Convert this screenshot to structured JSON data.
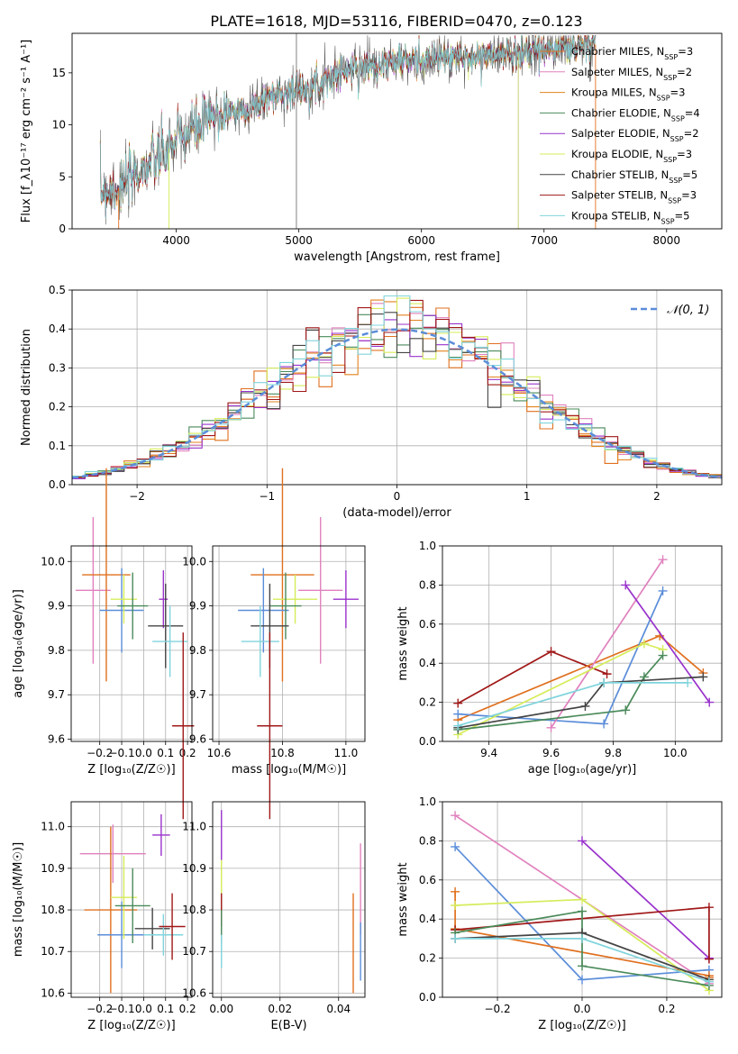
{
  "chart_data": [
    {
      "id": "spectrum",
      "type": "line",
      "title": "PLATE=1618, MJD=53116, FIBERID=0470, z=0.123",
      "xlabel": "wavelength [Angstrom, rest frame]",
      "ylabel": "Flux [f_λ10⁻¹⁷ erg cm⁻² s⁻¹ A⁻¹]",
      "xlim": [
        3150,
        8450
      ],
      "ylim": [
        0,
        18.8
      ],
      "xticks": [
        4000,
        5000,
        6000,
        7000,
        8000
      ],
      "yticks": [
        0,
        5,
        10,
        15
      ],
      "grid": false,
      "legend_position": "top-right",
      "series": [
        {
          "name": "Chabrier MILES, N_SSP=3",
          "color": "#e0701f"
        },
        {
          "name": "Salpeter MILES, N_SSP=2",
          "color": "#e081bd"
        },
        {
          "name": "Kroupa MILES, N_SSP=3",
          "color": "#e3821f"
        },
        {
          "name": "Chabrier ELODIE, N_SSP=4",
          "color": "#4a8a5a"
        },
        {
          "name": "Salpeter ELODIE, N_SSP=2",
          "color": "#9932cc"
        },
        {
          "name": "Kroupa ELODIE, N_SSP=3",
          "color": "#d6ec5a"
        },
        {
          "name": "Chabrier STELIB, N_SSP=5",
          "color": "#444444"
        },
        {
          "name": "Salpeter STELIB, N_SSP=3",
          "color": "#a01818"
        },
        {
          "name": "Kroupa STELIB, N_SSP=5",
          "color": "#80d4dc"
        }
      ],
      "continuum_points": [
        [
          3380,
          3.6
        ],
        [
          3550,
          4.0
        ],
        [
          3750,
          6.0
        ],
        [
          3900,
          7.2
        ],
        [
          4000,
          8.5
        ],
        [
          4200,
          10.0
        ],
        [
          4400,
          11.3
        ],
        [
          4600,
          11.6
        ],
        [
          4800,
          12.9
        ],
        [
          5000,
          13.4
        ],
        [
          5150,
          13.9
        ],
        [
          5300,
          14.8
        ],
        [
          5500,
          15.6
        ],
        [
          5800,
          16.1
        ],
        [
          6100,
          16.4
        ],
        [
          6400,
          16.5
        ],
        [
          6700,
          16.8
        ],
        [
          7000,
          17.3
        ],
        [
          7200,
          17.4
        ],
        [
          7420,
          17.7
        ]
      ]
    },
    {
      "id": "residuals",
      "type": "line",
      "xlabel": "(data-model)/error",
      "ylabel": "Normed distribution",
      "xlim": [
        -2.5,
        2.5
      ],
      "ylim": [
        0,
        0.5
      ],
      "xticks": [
        -2,
        -1,
        0,
        1,
        2
      ],
      "yticks": [
        0.0,
        0.1,
        0.2,
        0.3,
        0.4,
        0.5
      ],
      "grid": true,
      "legend": "𝒩(0, 1)",
      "legend_position": "top-right",
      "normal_color": "#5b8dd9"
    },
    {
      "id": "age-vs-Z",
      "type": "scatter",
      "xlabel": "Z [log₁₀(Z/Z☉)]",
      "ylabel": "age  [log₁₀(age/yr)]",
      "xlim": [
        -0.33,
        0.22
      ],
      "ylim": [
        9.595,
        10.035
      ],
      "xticks": [
        -0.2,
        -0.1,
        0.0,
        0.1,
        0.2
      ],
      "yticks": [
        9.6,
        9.7,
        9.8,
        9.9,
        10.0
      ],
      "grid": true,
      "points": [
        {
          "color": "#e081bd",
          "x": -0.23,
          "xerr": 0.08,
          "y": 9.935,
          "yerr": 0.165
        },
        {
          "color": "#e0701f",
          "x": -0.17,
          "xerr": 0.11,
          "y": 9.97,
          "yerr": 0.24
        },
        {
          "color": "#5b8dd9",
          "x": -0.1,
          "xerr": 0.1,
          "y": 9.89,
          "yerr": 0.095
        },
        {
          "color": "#d6ec5a",
          "x": -0.09,
          "xerr": 0.06,
          "y": 9.915,
          "yerr": 0.055
        },
        {
          "color": "#4a8a5a",
          "x": -0.05,
          "xerr": 0.07,
          "y": 9.9,
          "yerr": 0.075
        },
        {
          "color": "#9932cc",
          "x": 0.09,
          "xerr": 0.02,
          "y": 9.915,
          "yerr": 0.065
        },
        {
          "color": "#444444",
          "x": 0.1,
          "xerr": 0.08,
          "y": 9.855,
          "yerr": 0.095
        },
        {
          "color": "#80d4dc",
          "x": 0.12,
          "xerr": 0.08,
          "y": 9.82,
          "yerr": 0.08
        },
        {
          "color": "#a01818",
          "x": 0.18,
          "xerr": 0.05,
          "y": 9.63,
          "yerr": 0.21
        }
      ]
    },
    {
      "id": "age-vs-mass",
      "type": "scatter",
      "xlabel": "mass [log₁₀(M/M☉)]",
      "ylabel": "",
      "xlim": [
        10.58,
        11.06
      ],
      "ylim": [
        9.595,
        10.035
      ],
      "xticks": [
        10.6,
        10.8,
        11.0
      ],
      "yticks": [
        9.6,
        9.7,
        9.8,
        9.9,
        10.0
      ],
      "grid": true,
      "points": [
        {
          "color": "#e0701f",
          "x": 10.8,
          "xerr": 0.1,
          "y": 9.97,
          "yerr": 0.24
        },
        {
          "color": "#e081bd",
          "x": 10.92,
          "xerr": 0.07,
          "y": 9.935,
          "yerr": 0.165
        },
        {
          "color": "#9932cc",
          "x": 11.0,
          "xerr": 0.04,
          "y": 9.915,
          "yerr": 0.065
        },
        {
          "color": "#d6ec5a",
          "x": 10.84,
          "xerr": 0.07,
          "y": 9.915,
          "yerr": 0.055
        },
        {
          "color": "#5b8dd9",
          "x": 10.74,
          "xerr": 0.08,
          "y": 9.89,
          "yerr": 0.095
        },
        {
          "color": "#4a8a5a",
          "x": 10.81,
          "xerr": 0.05,
          "y": 9.9,
          "yerr": 0.075
        },
        {
          "color": "#444444",
          "x": 10.76,
          "xerr": 0.06,
          "y": 9.855,
          "yerr": 0.095
        },
        {
          "color": "#80d4dc",
          "x": 10.73,
          "xerr": 0.06,
          "y": 9.82,
          "yerr": 0.08
        },
        {
          "color": "#a01818",
          "x": 10.76,
          "xerr": 0.04,
          "y": 9.63,
          "yerr": 0.21
        }
      ]
    },
    {
      "id": "weight-vs-age",
      "type": "line",
      "xlabel": "age  [log₁₀(age/yr)]",
      "ylabel": "mass weight",
      "xlim": [
        9.25,
        10.15
      ],
      "ylim": [
        0,
        1
      ],
      "xticks": [
        9.4,
        9.6,
        9.8,
        10.0
      ],
      "yticks": [
        0.0,
        0.2,
        0.4,
        0.6,
        0.8,
        1.0
      ],
      "grid": true,
      "series": [
        {
          "color": "#a01818",
          "x": [
            9.3,
            9.6,
            9.78
          ],
          "y": [
            0.195,
            0.46,
            0.345
          ]
        },
        {
          "color": "#e0701f",
          "x": [
            9.3,
            9.95,
            10.09
          ],
          "y": [
            0.11,
            0.54,
            0.35
          ]
        },
        {
          "color": "#5b8dd9",
          "x": [
            9.3,
            9.77,
            9.96
          ],
          "y": [
            0.14,
            0.09,
            0.77
          ]
        },
        {
          "color": "#e081bd",
          "x": [
            9.6,
            9.96
          ],
          "y": [
            0.07,
            0.93
          ]
        },
        {
          "color": "#9932cc",
          "x": [
            9.84,
            10.11
          ],
          "y": [
            0.8,
            0.2
          ]
        },
        {
          "color": "#d6ec5a",
          "x": [
            9.3,
            9.9,
            9.96
          ],
          "y": [
            0.035,
            0.5,
            0.47
          ]
        },
        {
          "color": "#4a8a5a",
          "x": [
            9.3,
            9.84,
            9.9,
            9.96
          ],
          "y": [
            0.06,
            0.16,
            0.33,
            0.44
          ]
        },
        {
          "color": "#444444",
          "x": [
            9.3,
            9.71,
            9.77,
            10.09
          ],
          "y": [
            0.07,
            0.18,
            0.3,
            0.33
          ]
        },
        {
          "color": "#80d4dc",
          "x": [
            9.3,
            9.77,
            10.04
          ],
          "y": [
            0.08,
            0.3,
            0.3
          ]
        }
      ]
    },
    {
      "id": "mass-vs-Z",
      "type": "scatter",
      "xlabel": "Z [log₁₀(Z/Z☉)]",
      "ylabel": "mass [log₁₀(M/M☉)]",
      "xlim": [
        -0.33,
        0.22
      ],
      "ylim": [
        10.59,
        11.06
      ],
      "xticks": [
        -0.2,
        -0.1,
        0.0,
        0.1,
        0.2
      ],
      "yticks": [
        10.6,
        10.7,
        10.8,
        10.9,
        11.0
      ],
      "grid": true,
      "points": [
        {
          "color": "#e081bd",
          "x": -0.14,
          "xerr": 0.15,
          "y": 10.935,
          "yerr": 0.07
        },
        {
          "color": "#e0701f",
          "x": -0.15,
          "xerr": 0.12,
          "y": 10.8,
          "yerr": 0.2
        },
        {
          "color": "#5b8dd9",
          "x": -0.1,
          "xerr": 0.11,
          "y": 10.74,
          "yerr": 0.08
        },
        {
          "color": "#d6ec5a",
          "x": -0.09,
          "xerr": 0.06,
          "y": 10.83,
          "yerr": 0.1
        },
        {
          "color": "#4a8a5a",
          "x": -0.05,
          "xerr": 0.08,
          "y": 10.81,
          "yerr": 0.09
        },
        {
          "color": "#9932cc",
          "x": 0.08,
          "xerr": 0.04,
          "y": 10.98,
          "yerr": 0.05
        },
        {
          "color": "#444444",
          "x": 0.04,
          "xerr": 0.08,
          "y": 10.755,
          "yerr": 0.05
        },
        {
          "color": "#80d4dc",
          "x": 0.09,
          "xerr": 0.09,
          "y": 10.74,
          "yerr": 0.05
        },
        {
          "color": "#a01818",
          "x": 0.13,
          "xerr": 0.06,
          "y": 10.76,
          "yerr": 0.08
        }
      ]
    },
    {
      "id": "mass-vs-ebv",
      "type": "scatter",
      "xlabel": "E(B-V)",
      "ylabel": "",
      "xlim": [
        -0.003,
        0.049
      ],
      "ylim": [
        10.59,
        11.06
      ],
      "xticks": [
        0.0,
        0.02,
        0.04
      ],
      "yticks": [
        10.6,
        10.7,
        10.8,
        10.9,
        11.0
      ],
      "grid": true,
      "points": [
        {
          "color": "#9932cc",
          "x": 0.0,
          "y": 10.98,
          "yerr": 0.06
        },
        {
          "color": "#d6ec5a",
          "x": 0.0,
          "y": 10.86,
          "yerr": 0.06
        },
        {
          "color": "#a01818",
          "x": 0.0,
          "y": 10.8,
          "yerr": 0.04
        },
        {
          "color": "#4a8a5a",
          "x": 0.0,
          "y": 10.76,
          "yerr": 0.04
        },
        {
          "color": "#80d4dc",
          "x": 0.0,
          "y": 10.7,
          "yerr": 0.04
        },
        {
          "color": "#e0701f",
          "x": 0.045,
          "y": 10.72,
          "yerr": 0.12
        },
        {
          "color": "#e081bd",
          "x": 0.0475,
          "y": 10.85,
          "yerr": 0.11
        },
        {
          "color": "#5b8dd9",
          "x": 0.0475,
          "y": 10.7,
          "yerr": 0.07
        }
      ]
    },
    {
      "id": "weight-vs-Z",
      "type": "line",
      "xlabel": "Z [log₁₀(Z/Z☉)]",
      "ylabel": "mass weight",
      "xlim": [
        -0.33,
        0.33
      ],
      "ylim": [
        0,
        1
      ],
      "xticks": [
        -0.2,
        0.0,
        0.2
      ],
      "yticks": [
        0.0,
        0.2,
        0.4,
        0.6,
        0.8,
        1.0
      ],
      "grid": true,
      "series": [
        {
          "color": "#e081bd",
          "x": [
            -0.3,
            0.3
          ],
          "y": [
            0.93,
            0.07
          ]
        },
        {
          "color": "#5b8dd9",
          "x": [
            -0.3,
            0.0,
            0.3
          ],
          "y": [
            0.77,
            0.09,
            0.14
          ]
        },
        {
          "color": "#e0701f",
          "x": [
            -0.3,
            -0.3,
            0.3,
            0.3
          ],
          "y": [
            0.54,
            0.35,
            0.11,
            0.1
          ]
        },
        {
          "color": "#d6ec5a",
          "x": [
            -0.3,
            0.0,
            0.3
          ],
          "y": [
            0.47,
            0.5,
            0.035
          ]
        },
        {
          "color": "#9932cc",
          "x": [
            0.0,
            0.3
          ],
          "y": [
            0.8,
            0.2
          ]
        },
        {
          "color": "#a01818",
          "x": [
            -0.3,
            0.3,
            0.3
          ],
          "y": [
            0.345,
            0.46,
            0.195
          ]
        },
        {
          "color": "#4a8a5a",
          "x": [
            -0.3,
            0.0,
            0.0,
            0.3
          ],
          "y": [
            0.33,
            0.44,
            0.16,
            0.06
          ]
        },
        {
          "color": "#444444",
          "x": [
            -0.3,
            0.0,
            0.3
          ],
          "y": [
            0.3,
            0.33,
            0.09
          ]
        },
        {
          "color": "#80d4dc",
          "x": [
            -0.3,
            0.0,
            0.3
          ],
          "y": [
            0.3,
            0.3,
            0.08
          ]
        }
      ]
    }
  ]
}
